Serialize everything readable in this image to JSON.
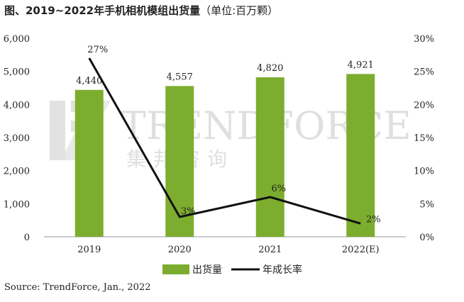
{
  "chart_data": {
    "type": "bar",
    "title": "图、2019~2022年手机相机模组出货量",
    "unit_note": "（单位:百万颗）",
    "categories": [
      "2019",
      "2020",
      "2021",
      "2022(E)"
    ],
    "series": [
      {
        "name": "出货量",
        "type": "bar",
        "axis": "left",
        "values": [
          4440,
          4557,
          4820,
          4921
        ],
        "labels": [
          "4,440",
          "4,557",
          "4,820",
          "4,921"
        ],
        "color": "#7cad2e"
      },
      {
        "name": "年成长率",
        "type": "line",
        "axis": "right",
        "values": [
          27,
          3,
          6,
          2
        ],
        "labels": [
          "27%",
          "3%",
          "6%",
          "2%"
        ],
        "color": "#111111"
      }
    ],
    "y_left": {
      "min": 0,
      "max": 6000,
      "ticks": [
        "0",
        "1,000",
        "2,000",
        "3,000",
        "4,000",
        "5,000",
        "6,000"
      ]
    },
    "y_right": {
      "min": 0,
      "max": 30,
      "ticks": [
        "0%",
        "5%",
        "10%",
        "15%",
        "20%",
        "25%",
        "30%"
      ]
    },
    "grid": false,
    "legend_position": "bottom",
    "watermark": {
      "text": "TRENDFORCE",
      "subtext": "集邦咨询"
    },
    "source": "Source: TrendForce, Jan., 2022"
  }
}
